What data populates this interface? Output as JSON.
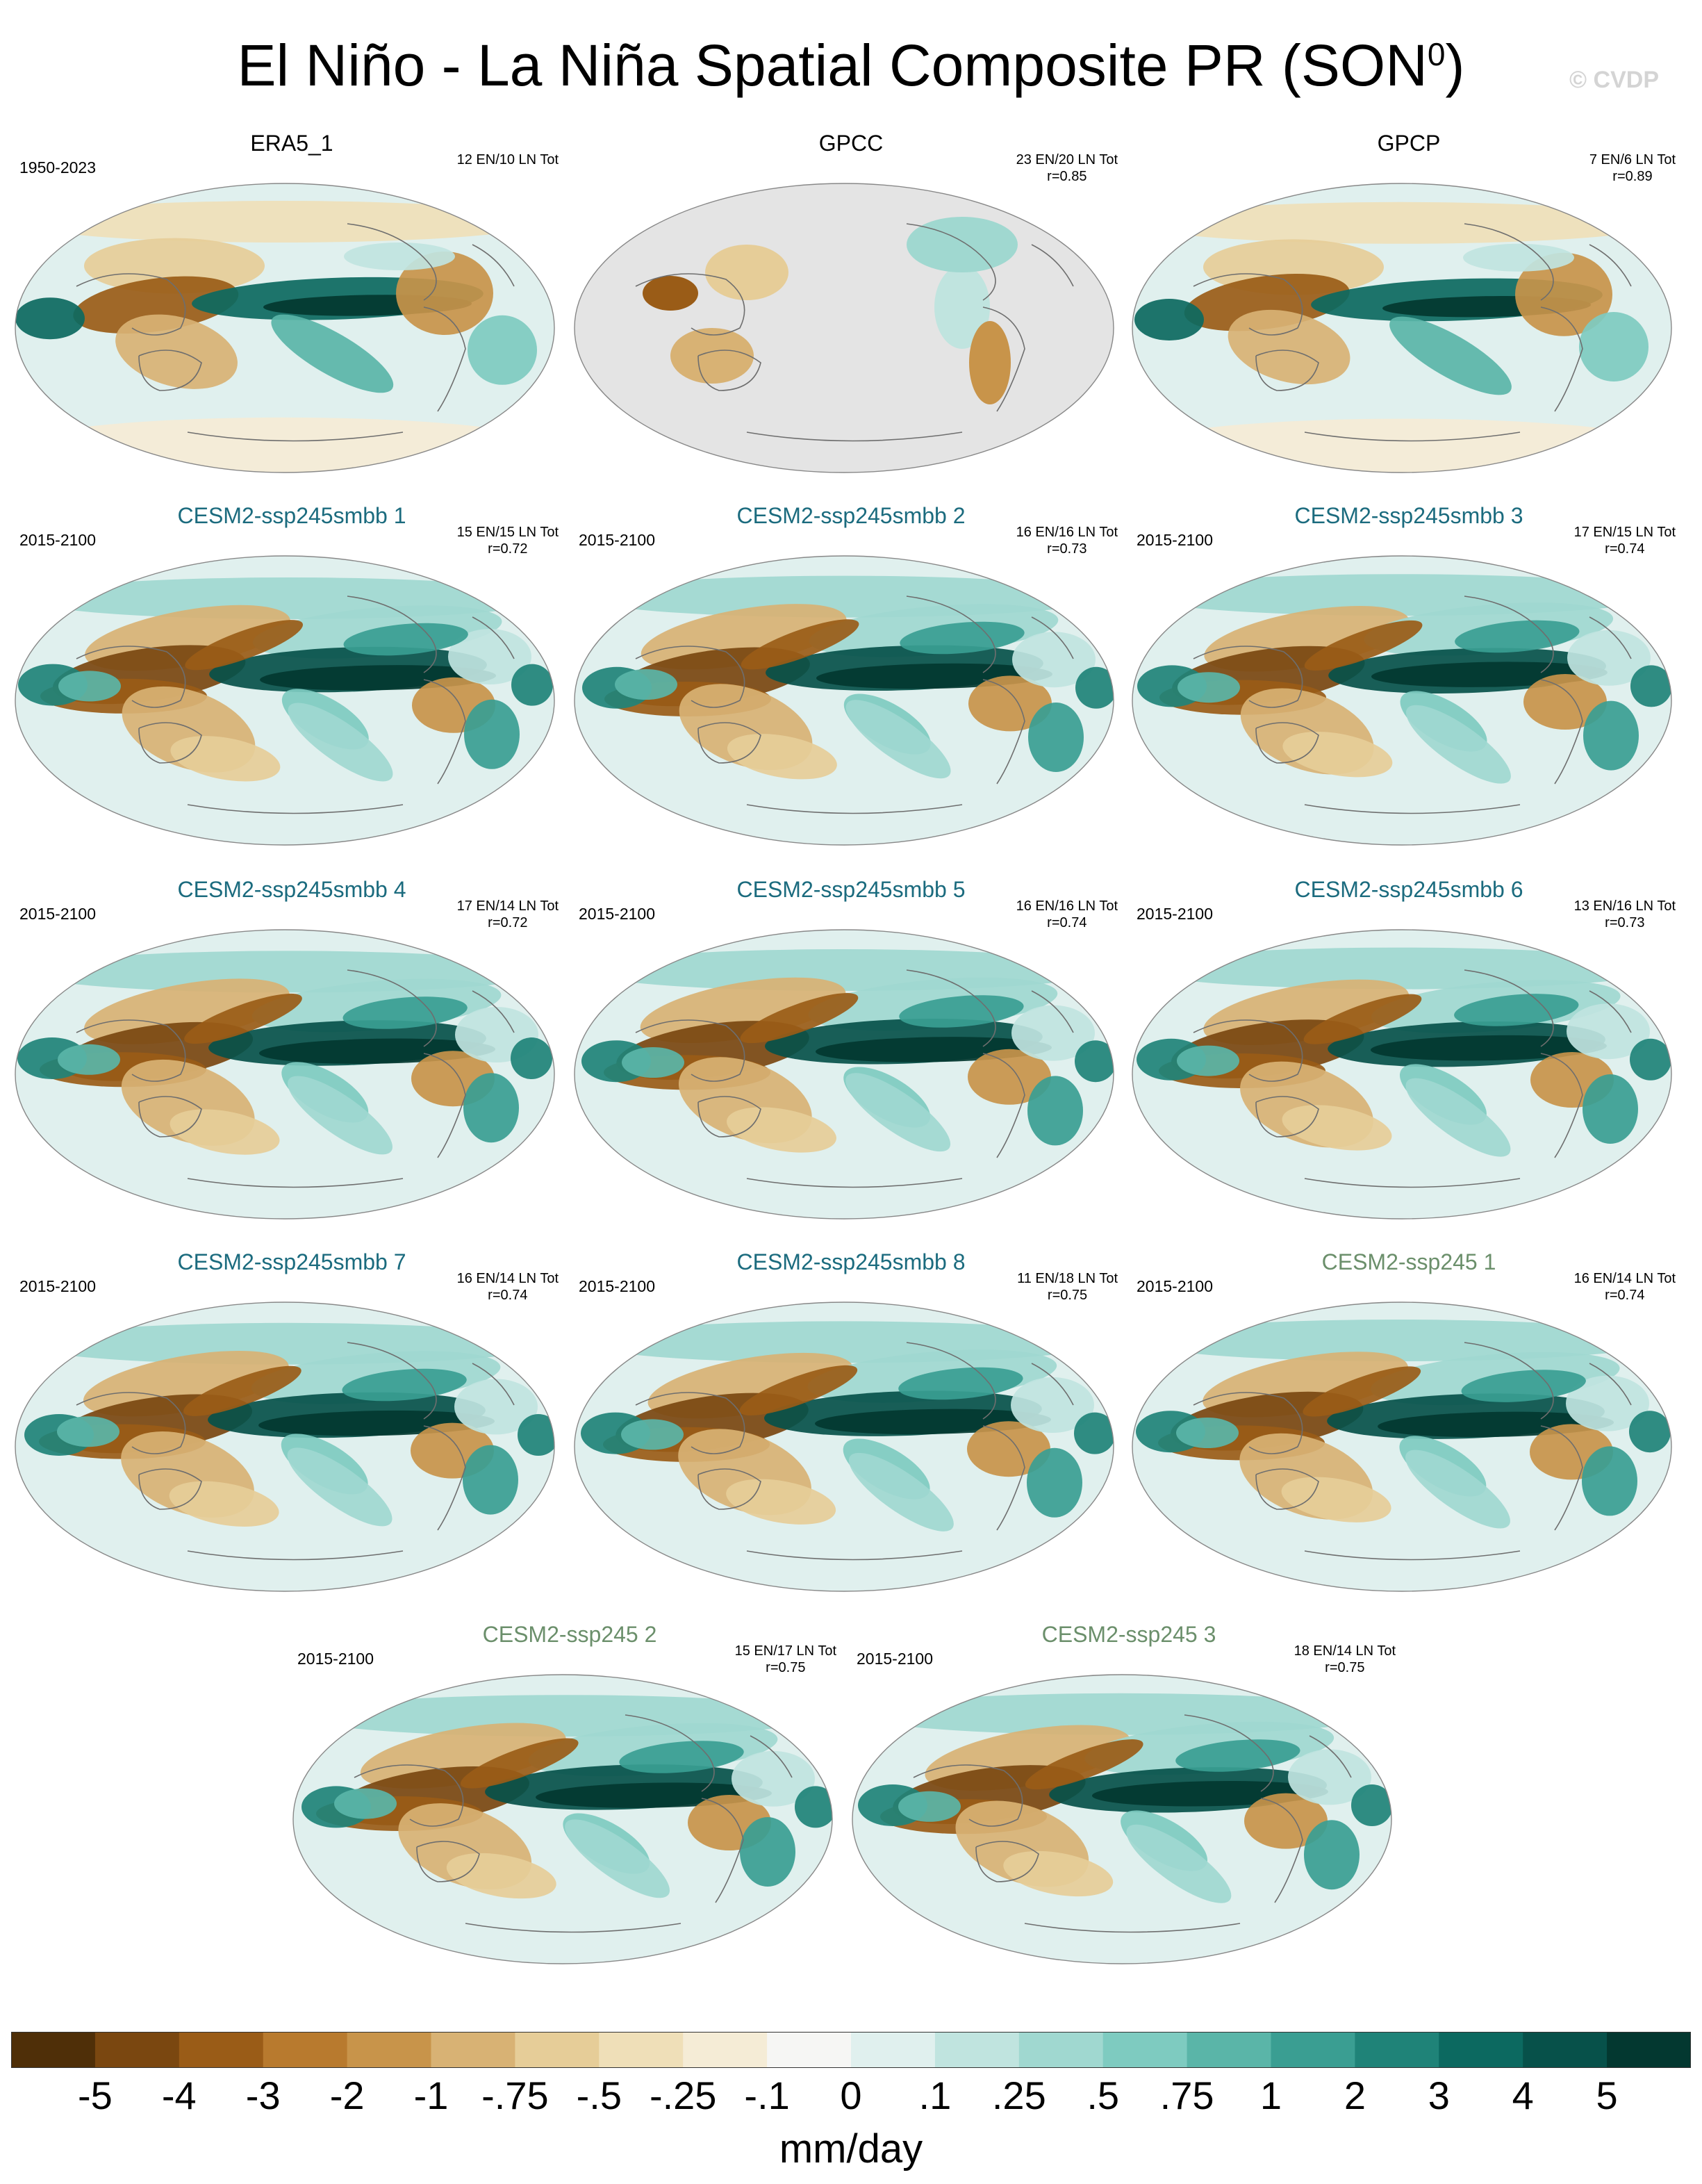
{
  "header": {
    "title": "El Niño - La Niña Spatial Composite PR (SON",
    "title_sup": "0",
    "title_close": ")",
    "watermark": "© CVDP"
  },
  "colors": {
    "title_model_smbb": "#1b6b7e",
    "title_model_ssp": "#6b8f6b",
    "title_obs": "#000000",
    "ocean_obs_missing": "#e4e4e4",
    "coast": "#6e6e6e"
  },
  "chart_data": {
    "type": "heatmap",
    "title": "El Niño - La Niña Spatial Composite PR (SON0)",
    "units": "mm/day",
    "colorbar": {
      "ticks": [
        "-5",
        "-4",
        "-3",
        "-2",
        "-1",
        "-.75",
        "-.5",
        "-.25",
        "-.1",
        "0",
        ".1",
        ".25",
        ".5",
        ".75",
        "1",
        "2",
        "3",
        "4",
        "5"
      ],
      "colors": [
        "#4f2f08",
        "#7a4710",
        "#9a5c17",
        "#b87a2e",
        "#c8944a",
        "#d8b274",
        "#e6cd98",
        "#efdfb8",
        "#f5ecd6",
        "#f6f6f4",
        "#e0f0ee",
        "#c0e4df",
        "#a0d8d0",
        "#7ecbc0",
        "#5ab5a8",
        "#3a9e92",
        "#1f8378",
        "#0c6960",
        "#07514a",
        "#033830"
      ]
    },
    "panels": [
      {
        "title": "ERA5_1",
        "period": "1950-2023",
        "counts": "12 EN/10 LN Tot",
        "r": "",
        "kind": "obs",
        "title_color": "#000000"
      },
      {
        "title": "GPCC",
        "period": "",
        "counts": "23 EN/20 LN Tot",
        "r": "r=0.85",
        "kind": "land",
        "title_color": "#000000"
      },
      {
        "title": "GPCP",
        "period": "",
        "counts": "7 EN/6 LN Tot",
        "r": "r=0.89",
        "kind": "obs",
        "title_color": "#000000"
      },
      {
        "title": "CESM2-ssp245smbb 1",
        "period": "2015-2100",
        "counts": "15 EN/15 LN Tot",
        "r": "r=0.72",
        "kind": "model",
        "title_color": "#1b6b7e"
      },
      {
        "title": "CESM2-ssp245smbb 2",
        "period": "2015-2100",
        "counts": "16 EN/16 LN Tot",
        "r": "r=0.73",
        "kind": "model",
        "title_color": "#1b6b7e"
      },
      {
        "title": "CESM2-ssp245smbb 3",
        "period": "2015-2100",
        "counts": "17 EN/15 LN Tot",
        "r": "r=0.74",
        "kind": "model",
        "title_color": "#1b6b7e"
      },
      {
        "title": "CESM2-ssp245smbb 4",
        "period": "2015-2100",
        "counts": "17 EN/14 LN Tot",
        "r": "r=0.72",
        "kind": "model",
        "title_color": "#1b6b7e"
      },
      {
        "title": "CESM2-ssp245smbb 5",
        "period": "2015-2100",
        "counts": "16 EN/16 LN Tot",
        "r": "r=0.74",
        "kind": "model",
        "title_color": "#1b6b7e"
      },
      {
        "title": "CESM2-ssp245smbb 6",
        "period": "2015-2100",
        "counts": "13 EN/16 LN Tot",
        "r": "r=0.73",
        "kind": "model",
        "title_color": "#1b6b7e"
      },
      {
        "title": "CESM2-ssp245smbb 7",
        "period": "2015-2100",
        "counts": "16 EN/14 LN Tot",
        "r": "r=0.74",
        "kind": "model",
        "title_color": "#1b6b7e"
      },
      {
        "title": "CESM2-ssp245smbb 8",
        "period": "2015-2100",
        "counts": "11 EN/18 LN Tot",
        "r": "r=0.75",
        "kind": "model",
        "title_color": "#1b6b7e"
      },
      {
        "title": "CESM2-ssp245 1",
        "period": "2015-2100",
        "counts": "16 EN/14 LN Tot",
        "r": "r=0.74",
        "kind": "model",
        "title_color": "#6b8f6b"
      },
      {
        "title": "CESM2-ssp245 2",
        "period": "2015-2100",
        "counts": "15 EN/17 LN Tot",
        "r": "r=0.75",
        "kind": "model",
        "title_color": "#6b8f6b"
      },
      {
        "title": "CESM2-ssp245 3",
        "period": "2015-2100",
        "counts": "18 EN/14 LN Tot",
        "r": "r=0.75",
        "kind": "model",
        "title_color": "#6b8f6b"
      }
    ]
  }
}
